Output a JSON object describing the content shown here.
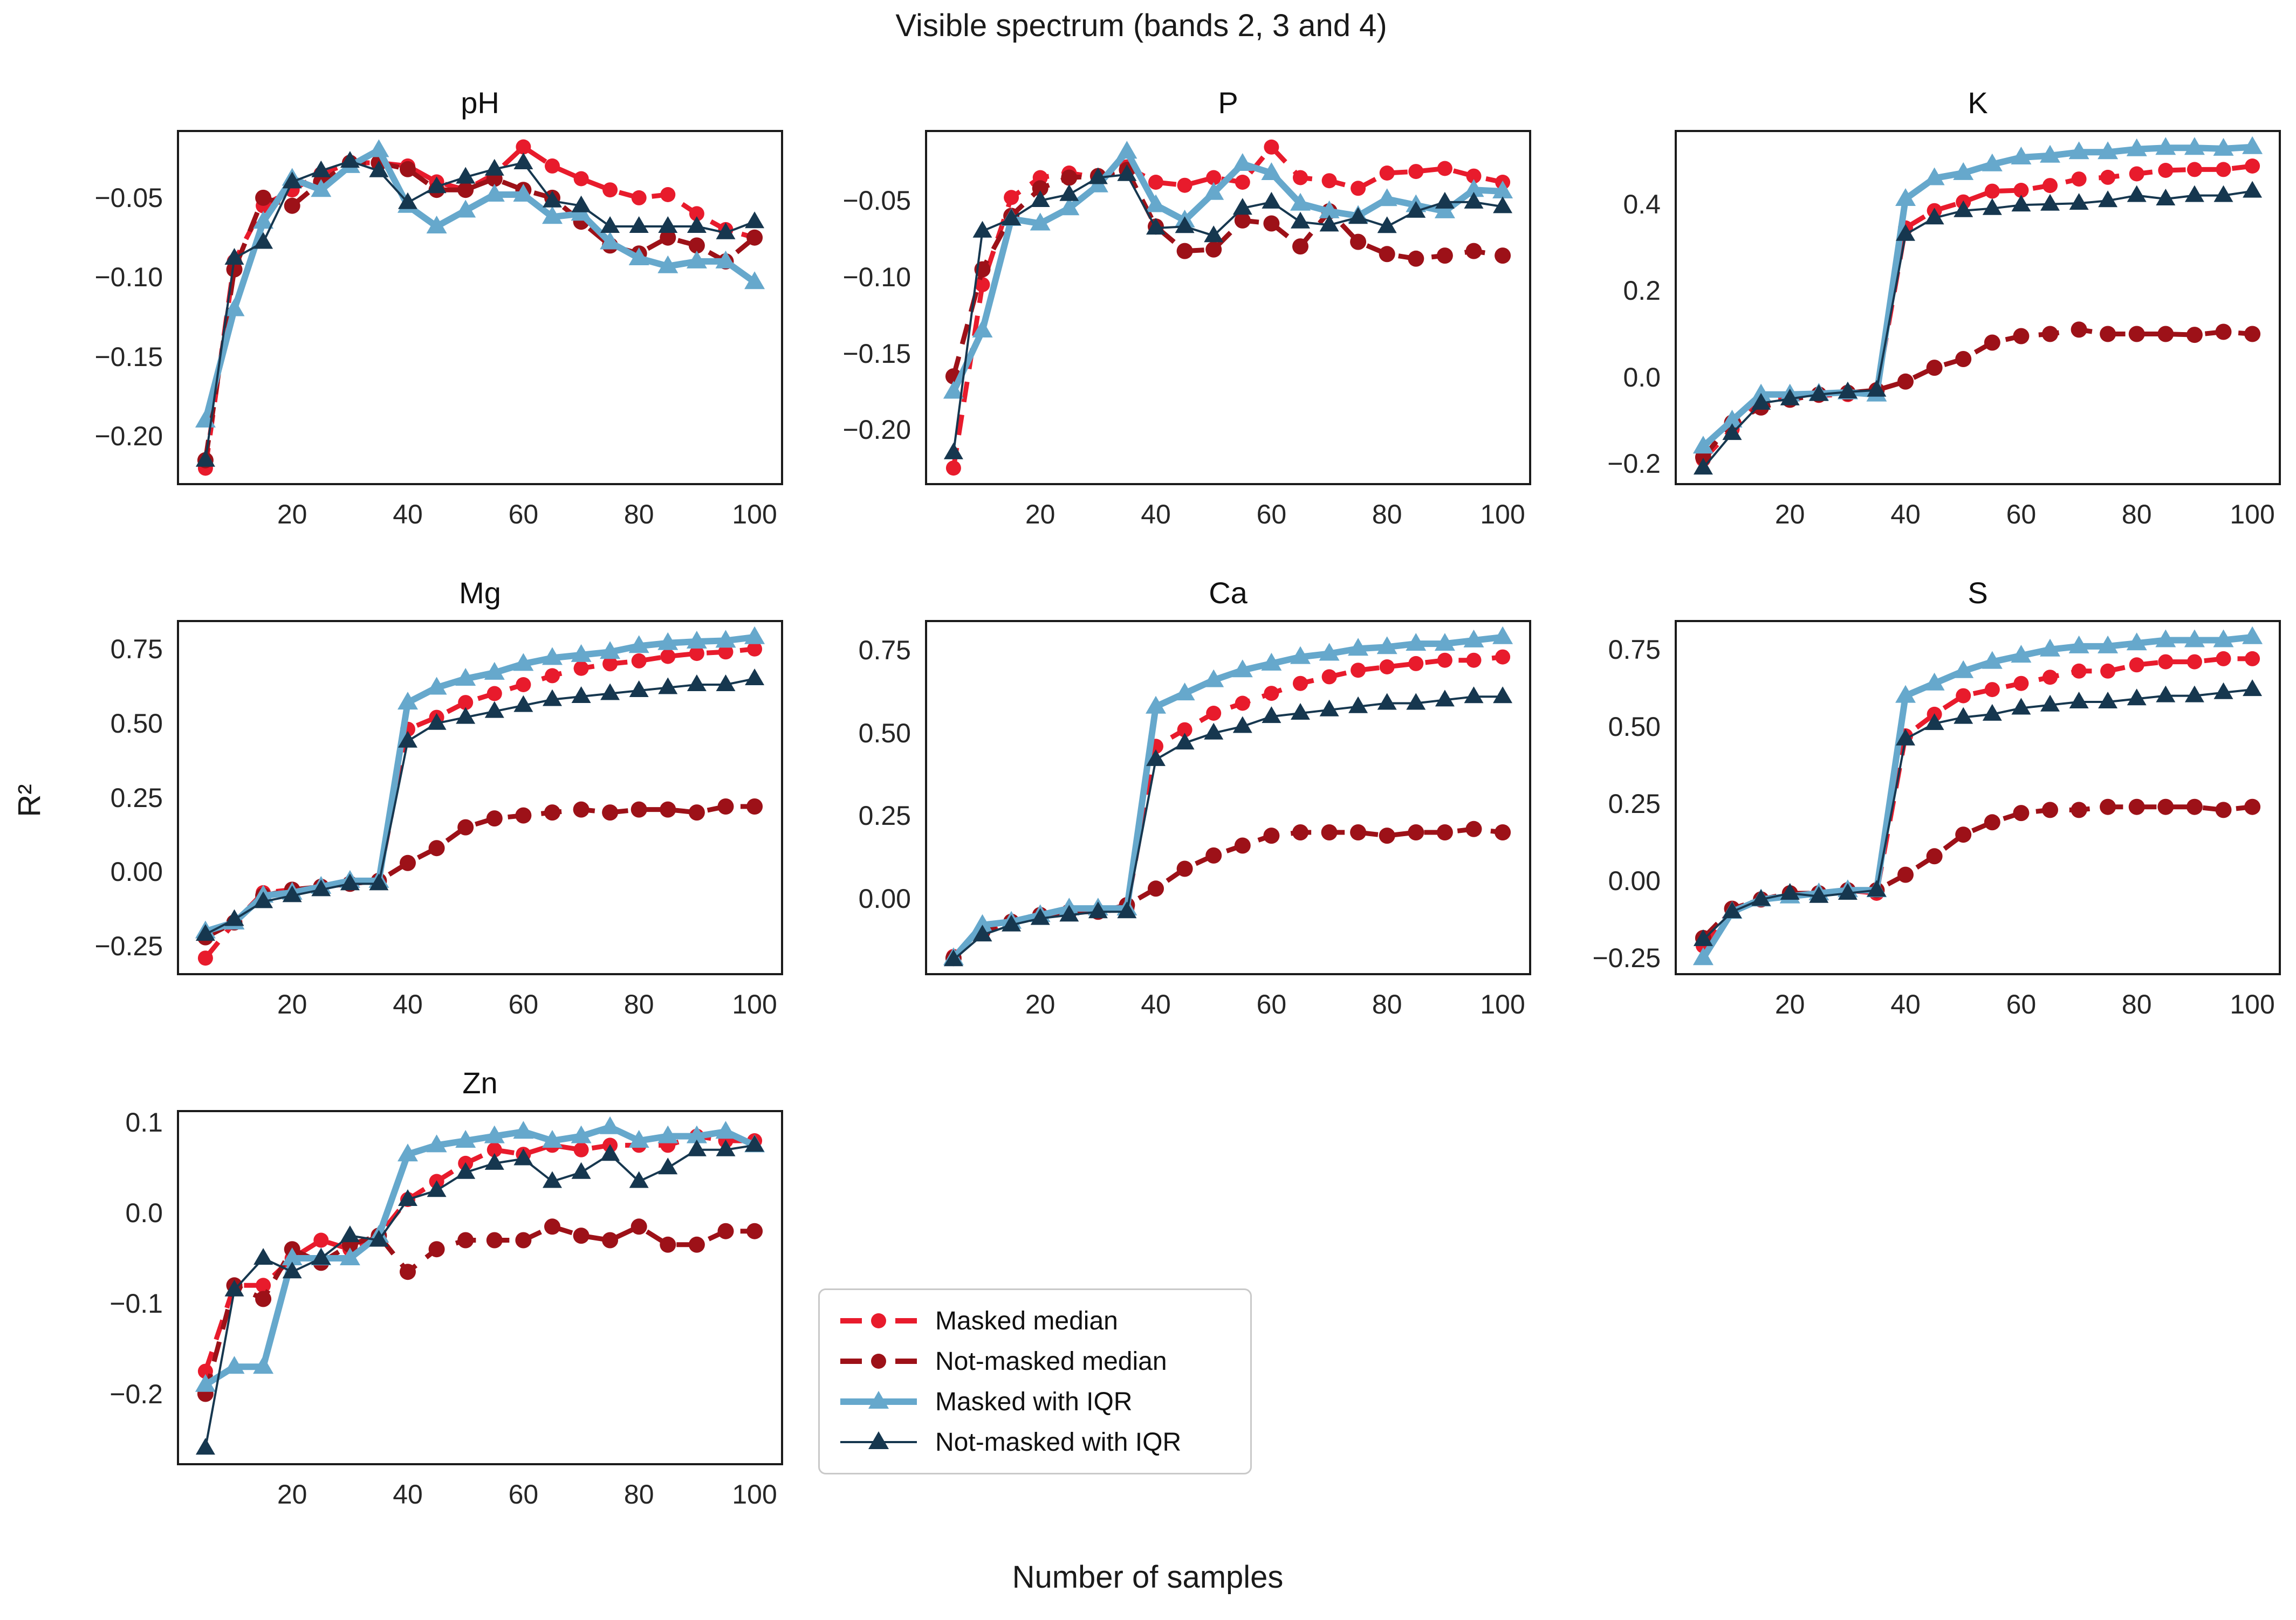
{
  "title": "Visible spectrum (bands 2, 3 and 4)",
  "xlabel": "Number of samples",
  "ylabel": "R²",
  "legend": {
    "items": [
      {
        "key": "masked_median",
        "label": "Masked median",
        "color": "#e81b2c",
        "marker": "circle",
        "line": "dashed"
      },
      {
        "key": "not_masked_median",
        "label": "Not-masked median",
        "color": "#9d1118",
        "marker": "circle",
        "line": "dashed"
      },
      {
        "key": "masked_iqr",
        "label": "Masked with IQR",
        "color": "#66a8cc",
        "marker": "triangle",
        "line": "solid"
      },
      {
        "key": "not_masked_iqr",
        "label": "Not-masked with IQR",
        "color": "#16374f",
        "marker": "triangle",
        "line": "solid"
      }
    ]
  },
  "chart_data": {
    "type": "line",
    "x": [
      5,
      10,
      15,
      20,
      25,
      30,
      35,
      40,
      45,
      50,
      55,
      60,
      65,
      70,
      75,
      80,
      85,
      90,
      95,
      100
    ],
    "xticks": [
      20,
      40,
      60,
      80,
      100
    ],
    "xlim": [
      0.25,
      104.75
    ],
    "panels": [
      {
        "id": "pH",
        "title": "pH",
        "ylim": [
          -0.23,
          -0.008
        ],
        "yticks": [
          -0.05,
          -0.1,
          -0.15,
          -0.2
        ],
        "ytick_labels": [
          "−0.05",
          "−0.10",
          "−0.15",
          "−0.20"
        ],
        "series": {
          "masked_median": [
            -0.22,
            -0.09,
            -0.055,
            -0.045,
            -0.035,
            -0.028,
            -0.028,
            -0.03,
            -0.04,
            -0.045,
            -0.035,
            -0.018,
            -0.03,
            -0.038,
            -0.045,
            -0.05,
            -0.048,
            -0.06,
            -0.07,
            -0.075
          ],
          "not_masked_median": [
            -0.215,
            -0.095,
            -0.05,
            -0.055,
            -0.04,
            -0.028,
            -0.028,
            -0.032,
            -0.045,
            -0.045,
            -0.038,
            -0.045,
            -0.05,
            -0.065,
            -0.08,
            -0.085,
            -0.075,
            -0.08,
            -0.09,
            -0.075
          ],
          "masked_iqr": [
            -0.19,
            -0.12,
            -0.065,
            -0.038,
            -0.045,
            -0.03,
            -0.02,
            -0.055,
            -0.068,
            -0.058,
            -0.048,
            -0.048,
            -0.062,
            -0.06,
            -0.078,
            -0.088,
            -0.093,
            -0.09,
            -0.09,
            -0.103
          ],
          "not_masked_iqr": [
            -0.215,
            -0.088,
            -0.078,
            -0.04,
            -0.033,
            -0.027,
            -0.033,
            -0.053,
            -0.043,
            -0.037,
            -0.032,
            -0.028,
            -0.052,
            -0.055,
            -0.068,
            -0.068,
            -0.068,
            -0.068,
            -0.072,
            -0.065
          ]
        }
      },
      {
        "id": "P",
        "title": "P",
        "ylim": [
          -0.2355,
          -0.0045
        ],
        "yticks": [
          -0.05,
          -0.1,
          -0.15,
          -0.2
        ],
        "ytick_labels": [
          "−0.05",
          "−0.10",
          "−0.15",
          "−0.20"
        ],
        "series": {
          "masked_median": [
            -0.225,
            -0.105,
            -0.048,
            -0.035,
            -0.032,
            -0.035,
            -0.028,
            -0.038,
            -0.04,
            -0.035,
            -0.038,
            -0.015,
            -0.035,
            -0.037,
            -0.042,
            -0.032,
            -0.031,
            -0.029,
            -0.034,
            -0.038
          ],
          "not_masked_median": [
            -0.165,
            -0.095,
            -0.06,
            -0.042,
            -0.035,
            -0.034,
            -0.03,
            -0.067,
            -0.083,
            -0.082,
            -0.063,
            -0.065,
            -0.08,
            -0.057,
            -0.077,
            -0.085,
            -0.088,
            -0.086,
            -0.083,
            -0.086
          ],
          "masked_iqr": [
            -0.175,
            -0.135,
            -0.062,
            -0.065,
            -0.055,
            -0.04,
            -0.018,
            -0.053,
            -0.063,
            -0.045,
            -0.026,
            -0.032,
            -0.052,
            -0.057,
            -0.06,
            -0.049,
            -0.053,
            -0.057,
            -0.043,
            -0.044
          ],
          "not_masked_iqr": [
            -0.215,
            -0.07,
            -0.062,
            -0.05,
            -0.046,
            -0.035,
            -0.033,
            -0.068,
            -0.067,
            -0.073,
            -0.055,
            -0.051,
            -0.064,
            -0.066,
            -0.061,
            -0.067,
            -0.057,
            -0.051,
            -0.051,
            -0.054
          ]
        }
      },
      {
        "id": "K",
        "title": "K",
        "ylim": [
          -0.247,
          0.569
        ],
        "yticks": [
          0.4,
          0.2,
          0.0,
          -0.2
        ],
        "ytick_labels": [
          "0.4",
          "0.2",
          "0.0",
          "−0.2"
        ],
        "series": {
          "masked_median": [
            -0.19,
            -0.12,
            -0.052,
            -0.05,
            -0.042,
            -0.04,
            -0.035,
            0.345,
            0.385,
            0.405,
            0.43,
            0.432,
            0.443,
            0.458,
            0.462,
            0.47,
            0.478,
            0.48,
            0.48,
            0.488
          ],
          "not_masked_median": [
            -0.185,
            -0.105,
            -0.07,
            -0.052,
            -0.04,
            -0.036,
            -0.03,
            -0.01,
            0.022,
            0.042,
            0.08,
            0.095,
            0.1,
            0.11,
            0.1,
            0.1,
            0.1,
            0.098,
            0.105,
            0.1
          ],
          "masked_iqr": [
            -0.16,
            -0.1,
            -0.04,
            -0.04,
            -0.038,
            -0.035,
            -0.04,
            0.412,
            0.46,
            0.472,
            0.492,
            0.508,
            0.512,
            0.52,
            0.52,
            0.527,
            0.53,
            0.53,
            0.528,
            0.532
          ],
          "not_masked_iqr": [
            -0.21,
            -0.13,
            -0.06,
            -0.05,
            -0.04,
            -0.034,
            -0.03,
            0.33,
            0.368,
            0.385,
            0.39,
            0.398,
            0.4,
            0.402,
            0.408,
            0.42,
            0.412,
            0.42,
            0.42,
            0.43
          ]
        }
      },
      {
        "id": "Mg",
        "title": "Mg",
        "ylim": [
          -0.344,
          0.844
        ],
        "yticks": [
          0.75,
          0.5,
          0.25,
          0.0,
          -0.25
        ],
        "ytick_labels": [
          "0.75",
          "0.50",
          "0.25",
          "0.00",
          "−0.25"
        ],
        "series": {
          "masked_median": [
            -0.29,
            -0.17,
            -0.07,
            -0.06,
            -0.05,
            -0.04,
            -0.03,
            0.48,
            0.52,
            0.57,
            0.6,
            0.63,
            0.66,
            0.685,
            0.7,
            0.71,
            0.725,
            0.735,
            0.74,
            0.75
          ],
          "not_masked_median": [
            -0.22,
            -0.17,
            -0.08,
            -0.06,
            -0.05,
            -0.04,
            -0.03,
            0.03,
            0.08,
            0.15,
            0.18,
            0.19,
            0.2,
            0.21,
            0.2,
            0.21,
            0.21,
            0.2,
            0.22,
            0.22
          ],
          "masked_iqr": [
            -0.2,
            -0.17,
            -0.08,
            -0.07,
            -0.05,
            -0.03,
            -0.03,
            0.57,
            0.62,
            0.65,
            0.67,
            0.7,
            0.72,
            0.73,
            0.74,
            0.76,
            0.77,
            0.775,
            0.778,
            0.79
          ],
          "not_masked_iqr": [
            -0.21,
            -0.16,
            -0.1,
            -0.08,
            -0.06,
            -0.04,
            -0.04,
            0.44,
            0.5,
            0.52,
            0.54,
            0.56,
            0.58,
            0.59,
            0.6,
            0.61,
            0.62,
            0.63,
            0.63,
            0.65
          ]
        }
      },
      {
        "id": "Ca",
        "title": "Ca",
        "ylim": [
          -0.2285,
          0.8385
        ],
        "yticks": [
          0.75,
          0.5,
          0.25,
          0.0
        ],
        "ytick_labels": [
          "0.75",
          "0.50",
          "0.25",
          "0.00"
        ],
        "series": {
          "masked_median": [
            -0.175,
            -0.1,
            -0.07,
            -0.05,
            -0.04,
            -0.04,
            -0.03,
            0.46,
            0.51,
            0.56,
            0.59,
            0.62,
            0.65,
            0.67,
            0.69,
            0.7,
            0.71,
            0.72,
            0.72,
            0.73
          ],
          "not_masked_median": [
            -0.18,
            -0.1,
            -0.07,
            -0.05,
            -0.04,
            -0.04,
            -0.02,
            0.03,
            0.09,
            0.13,
            0.16,
            0.19,
            0.2,
            0.2,
            0.2,
            0.19,
            0.2,
            0.2,
            0.21,
            0.2
          ],
          "masked_iqr": [
            -0.18,
            -0.08,
            -0.07,
            -0.05,
            -0.03,
            -0.03,
            -0.03,
            0.58,
            0.62,
            0.66,
            0.69,
            0.71,
            0.73,
            0.74,
            0.755,
            0.76,
            0.77,
            0.77,
            0.78,
            0.79
          ],
          "not_masked_iqr": [
            -0.185,
            -0.11,
            -0.08,
            -0.06,
            -0.05,
            -0.04,
            -0.04,
            0.42,
            0.47,
            0.5,
            0.52,
            0.55,
            0.56,
            0.57,
            0.58,
            0.59,
            0.59,
            0.6,
            0.61,
            0.61
          ]
        }
      },
      {
        "id": "S",
        "title": "S",
        "ylim": [
          -0.302,
          0.842
        ],
        "yticks": [
          0.75,
          0.5,
          0.25,
          0.0,
          -0.25
        ],
        "ytick_labels": [
          "0.75",
          "0.50",
          "0.25",
          "0.00",
          "−0.25"
        ],
        "series": {
          "masked_median": [
            -0.21,
            -0.09,
            -0.06,
            -0.04,
            -0.04,
            -0.03,
            -0.04,
            0.47,
            0.54,
            0.6,
            0.62,
            0.64,
            0.66,
            0.68,
            0.68,
            0.7,
            0.71,
            0.71,
            0.72,
            0.72
          ],
          "not_masked_median": [
            -0.185,
            -0.09,
            -0.06,
            -0.04,
            -0.04,
            -0.03,
            -0.03,
            0.02,
            0.08,
            0.15,
            0.19,
            0.22,
            0.23,
            0.23,
            0.24,
            0.24,
            0.24,
            0.24,
            0.23,
            0.24
          ],
          "masked_iqr": [
            -0.25,
            -0.1,
            -0.06,
            -0.05,
            -0.04,
            -0.03,
            -0.03,
            0.6,
            0.64,
            0.68,
            0.71,
            0.73,
            0.75,
            0.76,
            0.76,
            0.77,
            0.78,
            0.78,
            0.78,
            0.79
          ],
          "not_masked_iqr": [
            -0.19,
            -0.1,
            -0.06,
            -0.04,
            -0.05,
            -0.04,
            -0.03,
            0.46,
            0.51,
            0.53,
            0.54,
            0.56,
            0.57,
            0.58,
            0.58,
            0.59,
            0.6,
            0.6,
            0.61,
            0.62
          ]
        }
      },
      {
        "id": "Zn",
        "title": "Zn",
        "ylim": [
          -0.2778,
          0.1128
        ],
        "yticks": [
          0.1,
          0.0,
          -0.1,
          -0.2
        ],
        "ytick_labels": [
          "0.1",
          "0.0",
          "−0.1",
          "−0.2"
        ],
        "series": {
          "masked_median": [
            -0.175,
            -0.08,
            -0.08,
            -0.05,
            -0.03,
            -0.04,
            -0.025,
            0.015,
            0.035,
            0.055,
            0.07,
            0.065,
            0.075,
            0.07,
            0.075,
            0.075,
            0.075,
            0.085,
            0.08,
            0.08
          ],
          "not_masked_median": [
            -0.2,
            -0.08,
            -0.095,
            -0.04,
            -0.055,
            -0.035,
            -0.025,
            -0.065,
            -0.04,
            -0.03,
            -0.03,
            -0.03,
            -0.015,
            -0.025,
            -0.03,
            -0.015,
            -0.035,
            -0.035,
            -0.02,
            -0.02
          ],
          "masked_iqr": [
            -0.19,
            -0.17,
            -0.17,
            -0.05,
            -0.05,
            -0.05,
            -0.025,
            0.065,
            0.075,
            0.08,
            0.085,
            0.09,
            0.08,
            0.085,
            0.095,
            0.08,
            0.085,
            0.085,
            0.09,
            0.075
          ],
          "not_masked_iqr": [
            -0.26,
            -0.085,
            -0.05,
            -0.065,
            -0.05,
            -0.025,
            -0.03,
            0.015,
            0.025,
            0.045,
            0.055,
            0.06,
            0.035,
            0.045,
            0.065,
            0.035,
            0.05,
            0.07,
            0.07,
            0.075
          ]
        }
      }
    ]
  }
}
